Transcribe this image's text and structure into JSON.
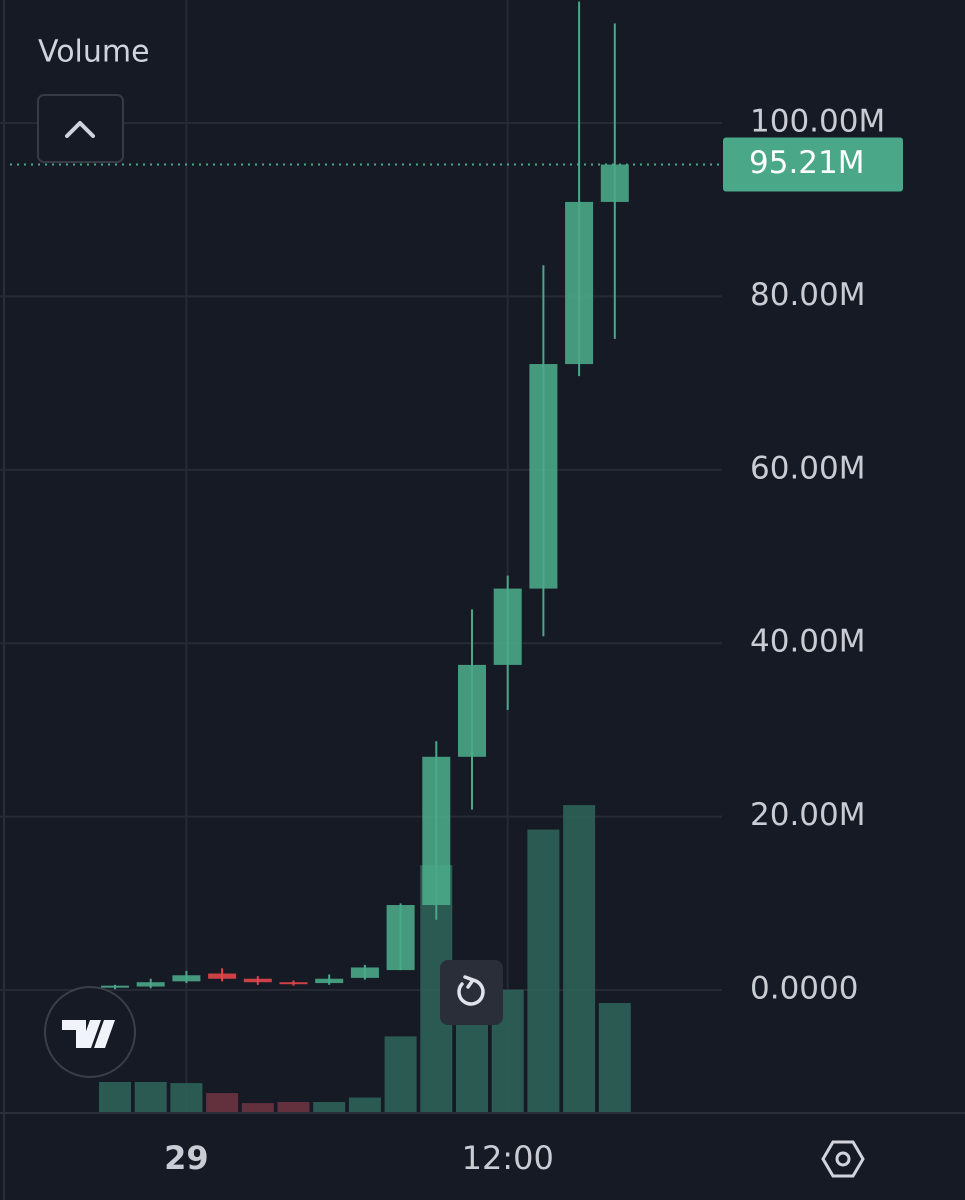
{
  "chart_data": {
    "type": "candlestick",
    "pane_label": "Volume",
    "open": [
      0.3,
      0.4,
      1.0,
      1.9,
      1.3,
      0.9,
      0.8,
      1.4,
      2.3,
      9.8,
      26.9,
      37.5,
      46.3,
      72.2,
      90.9
    ],
    "high": [
      0.6,
      1.3,
      2.2,
      2.5,
      1.6,
      1.1,
      1.8,
      2.9,
      10.0,
      28.7,
      43.9,
      47.8,
      83.6,
      114,
      111.5
    ],
    "low": [
      0.1,
      0.2,
      0.8,
      1.0,
      0.6,
      0.5,
      0.6,
      1.2,
      2.3,
      8.1,
      20.8,
      32.3,
      40.8,
      70.8,
      75.1
    ],
    "close": [
      0.5,
      0.9,
      1.7,
      1.3,
      0.9,
      0.7,
      1.3,
      2.6,
      9.8,
      26.9,
      37.5,
      46.3,
      72.2,
      90.9,
      95.21
    ],
    "volume": [
      27,
      27,
      26,
      17,
      8,
      9,
      9,
      13,
      68,
      222,
      85,
      110,
      254,
      276,
      98
    ],
    "volume_lim": [
      0,
      1000
    ],
    "up_color": "#4aa888",
    "down_color": "#e0464a",
    "volume_up_color": "#2e6258",
    "volume_down_color": "#6a3440",
    "ylim": [
      -14.07,
      114.19
    ],
    "yticks": [
      {
        "value": 0,
        "label": "0.0000"
      },
      {
        "value": 20,
        "label": "20.00M"
      },
      {
        "value": 40,
        "label": "40.00M"
      },
      {
        "value": 60,
        "label": "60.00M"
      },
      {
        "value": 80,
        "label": "80.00M"
      },
      {
        "value": 100,
        "label": "100.00M"
      }
    ],
    "xticks": [
      {
        "value": 2,
        "label": "29"
      },
      {
        "value": 11,
        "label": "12:00"
      }
    ],
    "last_price": 95.21,
    "last_price_label": "95.21M",
    "grid": true
  }
}
